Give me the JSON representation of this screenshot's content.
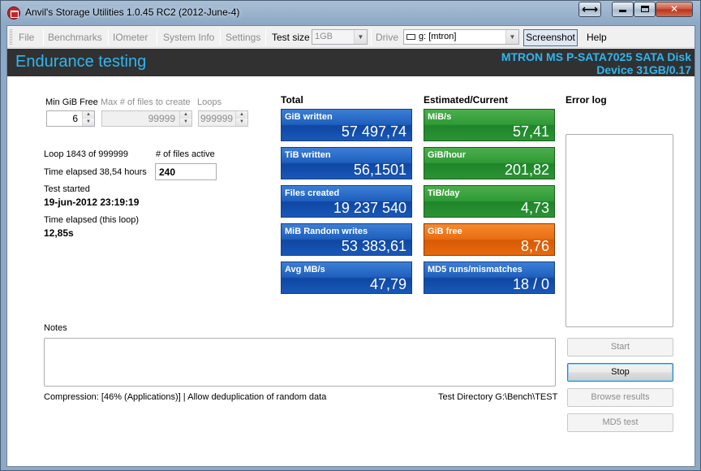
{
  "window": {
    "title": "Anvil's Storage Utilities 1.0.45 RC2 (2012-June-4)",
    "controls": {
      "restore_glyph": "⟷",
      "close_glyph": "✕"
    }
  },
  "toolbar": {
    "file": "File",
    "benchmarks": "Benchmarks",
    "iometer": "IOmeter",
    "system_info": "System Info",
    "settings": "Settings",
    "test_size_label": "Test size",
    "test_size_value": "1GB",
    "drive_label": "Drive",
    "drive_value": "g: [mtron]",
    "screenshot": "Screenshot",
    "help": "Help"
  },
  "header": {
    "title": "Endurance testing",
    "device_line1": "MTRON MS P-SATA7025 SATA Disk",
    "device_line2": "Device 31GB/0.17"
  },
  "settings_panel": {
    "min_gib_free_label": "Min GiB Free",
    "min_gib_free_value": "6",
    "max_files_label": "Max # of files to create",
    "max_files_value": "99999",
    "loops_label": "Loops",
    "loops_value": "999999"
  },
  "progress": {
    "loop": "Loop 1843 of 999999",
    "files_active_label": "# of files active",
    "files_active_value": "240",
    "time_elapsed": "Time elapsed 38,54 hours",
    "test_started_label": "Test started",
    "test_started_value": "19-jun-2012 23:19:19",
    "loop_elapsed_label": "Time elapsed (this loop)",
    "loop_elapsed_value": "12,85s"
  },
  "totals": {
    "heading": "Total",
    "tiles": [
      {
        "label": "GiB written",
        "value": "57 497,74"
      },
      {
        "label": "TiB written",
        "value": "56,1501"
      },
      {
        "label": "Files created",
        "value": "19 237 540"
      },
      {
        "label": "MiB Random writes",
        "value": "53 383,61"
      },
      {
        "label": "Avg MB/s",
        "value": "47,79"
      }
    ]
  },
  "estimated": {
    "heading": "Estimated/Current",
    "tiles": [
      {
        "label": "MiB/s",
        "value": "57,41"
      },
      {
        "label": "GiB/hour",
        "value": "201,82"
      },
      {
        "label": "TiB/day",
        "value": "4,73"
      },
      {
        "label": "GiB free",
        "value": "8,76"
      },
      {
        "label": "MD5 runs/mismatches",
        "value": "18 / 0"
      }
    ]
  },
  "error_log": {
    "heading": "Error log"
  },
  "actions": {
    "start": "Start",
    "stop": "Stop",
    "browse": "Browse results",
    "md5": "MD5 test"
  },
  "notes": {
    "label": "Notes"
  },
  "footer": {
    "compression": "Compression: [46% (Applications)] | Allow deduplication of random data",
    "directory": "Test Directory G:\\Bench\\TEST"
  },
  "colors": {
    "accent": "#2fb6f0",
    "tile_blue": "#1f5fbd",
    "tile_green": "#2f9a36",
    "tile_orange": "#ea6d12"
  }
}
